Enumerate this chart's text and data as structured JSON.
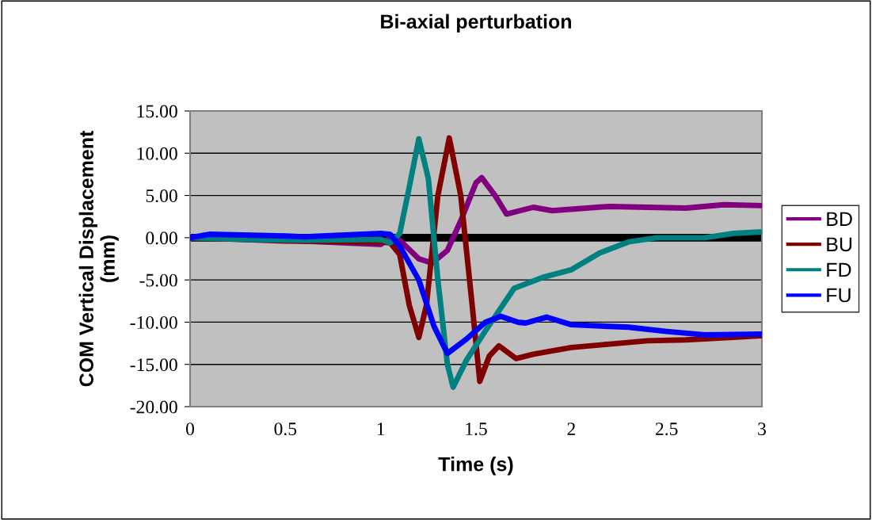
{
  "chart_data": {
    "type": "line",
    "title": "Bi-axial perturbation",
    "xlabel": "Time (s)",
    "ylabel": "COM Vertical Displacement\n(mm)",
    "xlim": [
      0,
      3
    ],
    "xticks": [
      0,
      0.5,
      1,
      1.5,
      2,
      2.5,
      3
    ],
    "ylim": [
      -20,
      15
    ],
    "yticks": [
      {
        "value": -20,
        "label": "-20.00"
      },
      {
        "value": -15,
        "label": "-15.00"
      },
      {
        "value": -10,
        "label": "-10.00"
      },
      {
        "value": -5,
        "label": "-5.00"
      },
      {
        "value": 0,
        "label": "0.00"
      },
      {
        "value": 5,
        "label": "5.00"
      },
      {
        "value": 10,
        "label": "10.00"
      },
      {
        "value": 15,
        "label": "15.00"
      }
    ],
    "grid": "y",
    "legend": "right",
    "marker": "none",
    "line_style": "solid",
    "ref_lines": [
      {
        "axis": "y",
        "value": 0,
        "color": "#000000"
      }
    ],
    "series": [
      {
        "name": "BD",
        "color": "#800080",
        "x": [
          0,
          0.5,
          0.8,
          1.0,
          1.05,
          1.1,
          1.2,
          1.27,
          1.35,
          1.42,
          1.5,
          1.53,
          1.6,
          1.66,
          1.8,
          1.9,
          2.2,
          2.6,
          2.8,
          3
        ],
        "values": [
          0,
          -0.3,
          -0.6,
          -0.8,
          0,
          -0.3,
          -2.5,
          -3.0,
          -1.5,
          2,
          6.5,
          7.1,
          5,
          2.8,
          3.6,
          3.2,
          3.7,
          3.5,
          3.9,
          3.8
        ]
      },
      {
        "name": "BU",
        "color": "#800000",
        "x": [
          0,
          0.5,
          1.0,
          1.05,
          1.1,
          1.15,
          1.2,
          1.24,
          1.3,
          1.36,
          1.42,
          1.48,
          1.52,
          1.57,
          1.62,
          1.71,
          1.8,
          2.0,
          2.2,
          2.4,
          2.6,
          3
        ],
        "values": [
          0,
          -0.4,
          -0.5,
          -0.6,
          -2,
          -8,
          -11.8,
          -8,
          5,
          11.8,
          5,
          -8,
          -17,
          -14,
          -12.8,
          -14.3,
          -13.8,
          -13,
          -12.6,
          -12.2,
          -12.1,
          -11.6
        ]
      },
      {
        "name": "FD",
        "color": "#008080",
        "x": [
          0,
          0.3,
          0.6,
          1.0,
          1.05,
          1.1,
          1.15,
          1.2,
          1.25,
          1.3,
          1.35,
          1.38,
          1.45,
          1.55,
          1.7,
          1.85,
          2.0,
          2.15,
          2.3,
          2.45,
          2.7,
          2.85,
          3
        ],
        "values": [
          0,
          -0.2,
          -0.3,
          -0.2,
          -0.6,
          0.5,
          6,
          11.7,
          7,
          -5,
          -15,
          -17.7,
          -14.5,
          -11,
          -6,
          -4.7,
          -3.8,
          -1.8,
          -0.5,
          0,
          0,
          0.5,
          0.7
        ]
      },
      {
        "name": "FU",
        "color": "#0000ff",
        "x": [
          0,
          0.1,
          0.5,
          0.6,
          1.0,
          1.05,
          1.1,
          1.2,
          1.28,
          1.35,
          1.45,
          1.55,
          1.63,
          1.72,
          1.76,
          1.87,
          2.0,
          2.3,
          2.5,
          2.7,
          3
        ],
        "values": [
          0,
          0.4,
          0.2,
          0.1,
          0.5,
          0.4,
          -1,
          -5,
          -10.5,
          -13.7,
          -12,
          -10,
          -9.3,
          -10,
          -10.1,
          -9.4,
          -10.3,
          -10.6,
          -11.1,
          -11.5,
          -11.4
        ]
      }
    ]
  }
}
